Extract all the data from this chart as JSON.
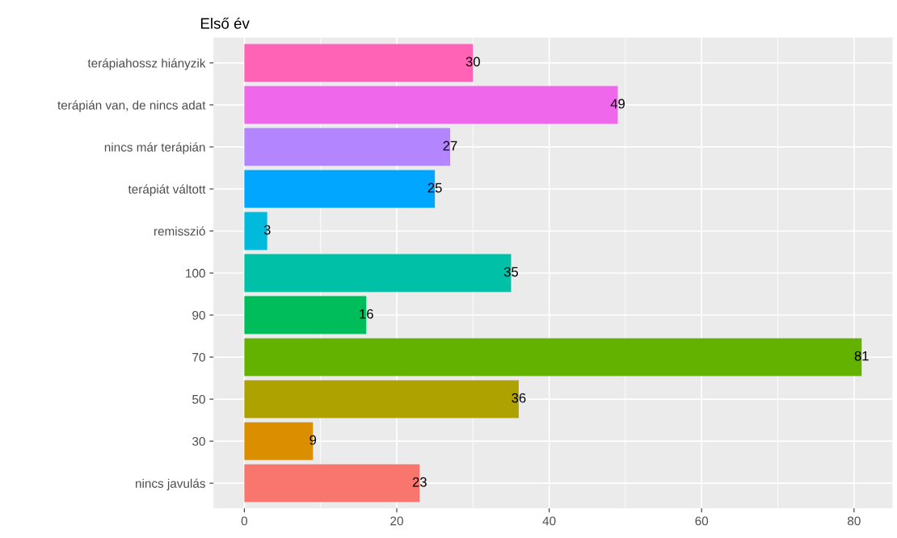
{
  "chart_data": {
    "type": "bar",
    "title": "Első év",
    "orientation": "horizontal",
    "categories": [
      "terápiahossz hiányzik",
      "terápián van, de nincs adat",
      "nincs már terápián",
      "terápiát váltott",
      "remisszió",
      "100",
      "90",
      "70",
      "50",
      "30",
      "nincs javulás"
    ],
    "values": [
      30,
      49,
      27,
      25,
      3,
      35,
      16,
      81,
      36,
      9,
      23
    ],
    "colors": [
      "#ff63b6",
      "#ef67eb",
      "#b385ff",
      "#00a6ff",
      "#00bade",
      "#00c1a7",
      "#00bd5c",
      "#64b200",
      "#aea200",
      "#db8e00",
      "#f8766d"
    ],
    "xlim": [
      -4.05,
      85.05
    ],
    "xticks": [
      0,
      20,
      40,
      60,
      80
    ],
    "grid": true,
    "data_labels": true
  }
}
